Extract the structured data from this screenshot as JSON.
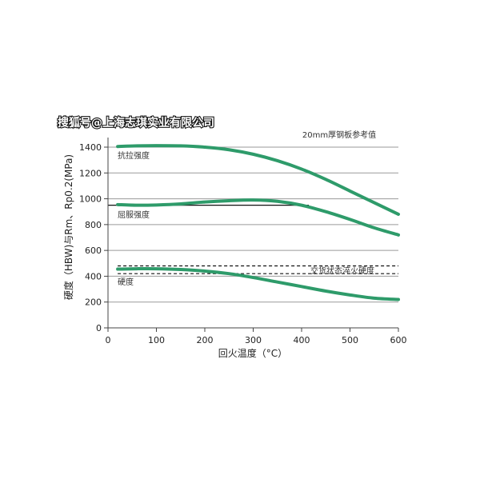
{
  "watermark": "搜狐号@上海志琪实业有限公司",
  "chart_data": {
    "type": "line",
    "title": "20mm厚钢板参考值",
    "xlabel": "回火温度（°C）",
    "ylabel": "硬度（HBW)与Rm、Rp0.2(MPa)",
    "xlim": [
      0,
      600
    ],
    "ylim": [
      0,
      1500
    ],
    "x_ticks": [
      0,
      100,
      200,
      300,
      400,
      500,
      600
    ],
    "y_ticks": [
      0,
      200,
      400,
      600,
      800,
      1000,
      1200,
      1400
    ],
    "grid": "horizontal",
    "series": [
      {
        "name": "抗拉强度",
        "color": "#2e9b6a",
        "x": [
          20,
          60,
          100,
          150,
          200,
          250,
          300,
          350,
          400,
          450,
          500,
          550,
          600
        ],
        "y": [
          1405,
          1410,
          1412,
          1410,
          1400,
          1380,
          1345,
          1295,
          1230,
          1150,
          1060,
          970,
          880
        ]
      },
      {
        "name": "屈服强度",
        "color": "#2e9b6a",
        "x": [
          20,
          60,
          100,
          150,
          200,
          250,
          300,
          350,
          400,
          450,
          500,
          550,
          600
        ],
        "y": [
          955,
          950,
          952,
          960,
          975,
          985,
          990,
          980,
          950,
          900,
          840,
          775,
          720
        ]
      },
      {
        "name": "硬度",
        "color": "#2e9b6a",
        "x": [
          20,
          60,
          100,
          150,
          200,
          250,
          300,
          350,
          400,
          450,
          500,
          550,
          600
        ],
        "y": [
          455,
          458,
          458,
          452,
          440,
          420,
          390,
          355,
          320,
          285,
          255,
          230,
          220
        ]
      }
    ],
    "reference_lines": [
      {
        "type": "solid",
        "y": 950,
        "x_start": 0,
        "x_end": 415,
        "color": "#111111"
      },
      {
        "type": "dashed",
        "y": 480,
        "x_start": 20,
        "x_end": 600,
        "color": "#111111"
      },
      {
        "type": "dashed",
        "y": 420,
        "x_start": 20,
        "x_end": 600,
        "color": "#111111"
      }
    ],
    "annotations": [
      {
        "text": "交货状态淬火硬度",
        "x": 415,
        "y": 450
      }
    ]
  }
}
